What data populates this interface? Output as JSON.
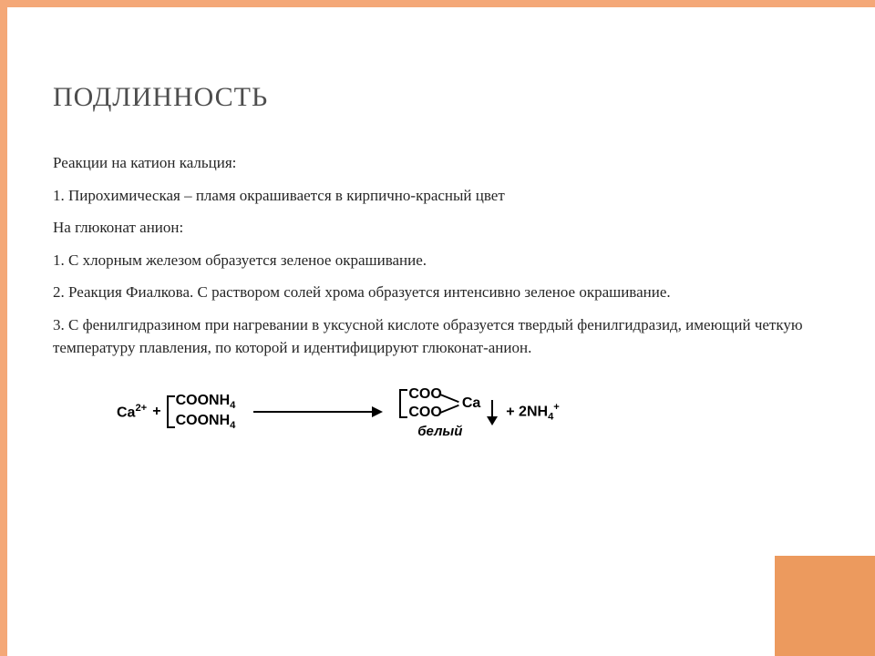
{
  "colors": {
    "frame": "#f4a878",
    "corner": "#ec9a5e",
    "title": "#4d4d4d",
    "text": "#262626",
    "equation": "#000000",
    "background": "#ffffff"
  },
  "title": "Подлинность",
  "paragraphs": {
    "p1": "Реакции на катион кальция:",
    "p2": "1. Пирохимическая – пламя окрашивается в кирпично-красный цвет",
    "p3": "На глюконат анион:",
    "p4": "1. С хлорным железом образуется зеленое окрашивание.",
    "p5": "2. Реакция Фиалкова. С раствором солей хрома образуется интенсивно зеленое окрашивание.",
    "p6": "3. С фенилгидразином при  нагревании в уксусной кислоте образуется твердый фенилгидразид, имеющий четкую температуру плавления, по которой и идентифицируют глюконат-анион."
  },
  "equation": {
    "ca_ion_pre": "Ca",
    "ca_ion_charge": "2+",
    "plus1": " + ",
    "reagent_top": "COONH",
    "reagent_sub": "4",
    "reagent_bot": "COONH",
    "product_coo": "COO",
    "product_ca": "Ca",
    "plus2": " + 2NH",
    "nh_sub": "4",
    "nh_sup": "+",
    "label_below": "белый"
  }
}
